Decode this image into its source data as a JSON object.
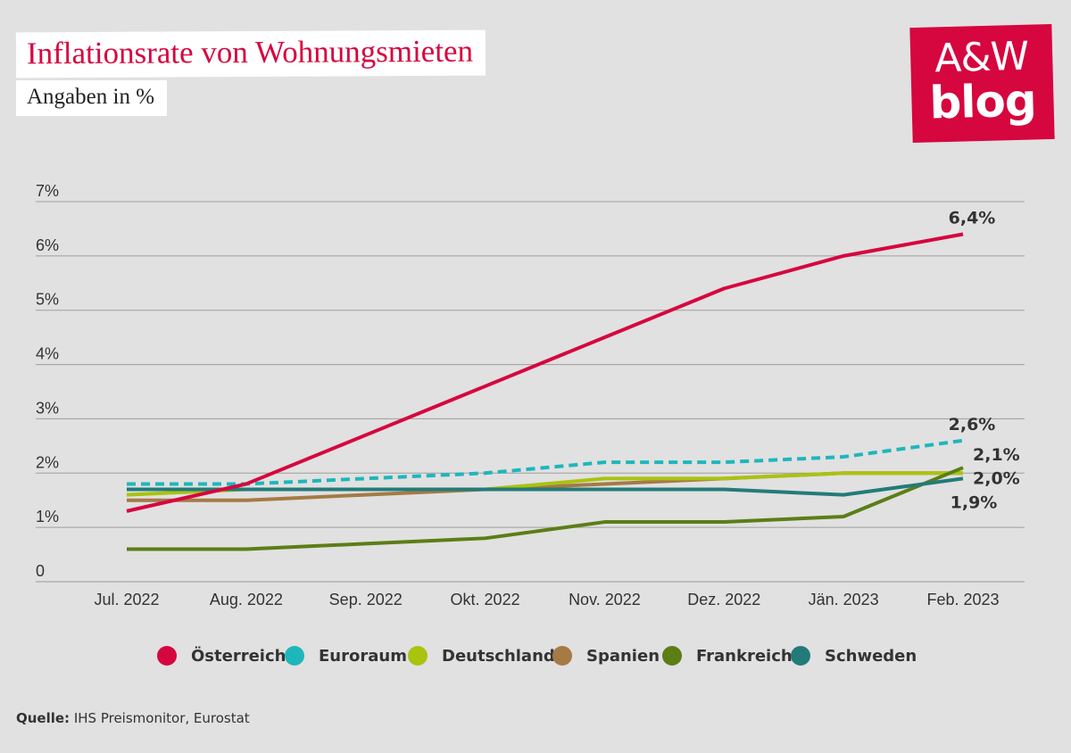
{
  "header": {
    "title": "Inflationsrate von Wohnungsmieten",
    "subtitle": "Angaben in %"
  },
  "logo": {
    "line1": "A&W",
    "line2": "blog",
    "color": "#d6063f"
  },
  "chart_data": {
    "type": "line",
    "title": "Inflationsrate von Wohnungsmieten",
    "subtitle": "Angaben in %",
    "xlabel": "",
    "ylabel": "",
    "categories": [
      "Jul. 2022",
      "Aug. 2022",
      "Sep. 2022",
      "Okt. 2022",
      "Nov. 2022",
      "Dez. 2022",
      "Jän. 2023",
      "Feb. 2023"
    ],
    "ylim": [
      0,
      7
    ],
    "yticks": [
      0,
      1,
      2,
      3,
      4,
      5,
      6,
      7
    ],
    "ytick_labels": [
      "0",
      "1%",
      "2%",
      "3%",
      "4%",
      "5%",
      "6%",
      "7%"
    ],
    "grid": true,
    "legend_position": "bottom",
    "series": [
      {
        "name": "Spanien",
        "color": "#a57a45",
        "dashed": false,
        "values": [
          1.5,
          1.5,
          1.6,
          1.7,
          1.8,
          1.9,
          2.0,
          2.0
        ]
      },
      {
        "name": "Deutschland",
        "color": "#a9c30f",
        "dashed": false,
        "values": [
          1.6,
          1.7,
          1.7,
          1.7,
          1.9,
          1.9,
          2.0,
          2.0
        ]
      },
      {
        "name": "Frankreich",
        "color": "#5b7e16",
        "dashed": false,
        "values": [
          0.6,
          0.6,
          0.7,
          0.8,
          1.1,
          1.1,
          1.2,
          2.1
        ]
      },
      {
        "name": "Schweden",
        "color": "#237b79",
        "dashed": false,
        "values": [
          1.7,
          1.7,
          1.7,
          1.7,
          1.7,
          1.7,
          1.6,
          1.9
        ]
      },
      {
        "name": "Euroraum",
        "color": "#1db7bb",
        "dashed": true,
        "values": [
          1.8,
          1.8,
          1.9,
          2.0,
          2.2,
          2.2,
          2.3,
          2.6
        ]
      },
      {
        "name": "Österreich",
        "color": "#d6063f",
        "dashed": false,
        "values": [
          1.3,
          1.8,
          2.7,
          3.6,
          4.5,
          5.4,
          6.0,
          6.4
        ]
      }
    ],
    "legend": [
      {
        "name": "Österreich",
        "color": "#d6063f"
      },
      {
        "name": "Euroraum",
        "color": "#1db7bb"
      },
      {
        "name": "Deutschland",
        "color": "#a9c30f"
      },
      {
        "name": "Spanien",
        "color": "#a57a45"
      },
      {
        "name": "Frankreich",
        "color": "#5b7e16"
      },
      {
        "name": "Schweden",
        "color": "#237b79"
      }
    ],
    "end_labels": [
      {
        "text": "6,4%",
        "series": "Österreich"
      },
      {
        "text": "2,6%",
        "series": "Euroraum"
      },
      {
        "text": "2,1%",
        "series": "Frankreich"
      },
      {
        "text": "2,0%",
        "series": "Spanien"
      },
      {
        "text": "1,9%",
        "series": "Schweden"
      }
    ]
  },
  "source": {
    "label": "Quelle:",
    "text": "IHS Preismonitor, Eurostat"
  }
}
